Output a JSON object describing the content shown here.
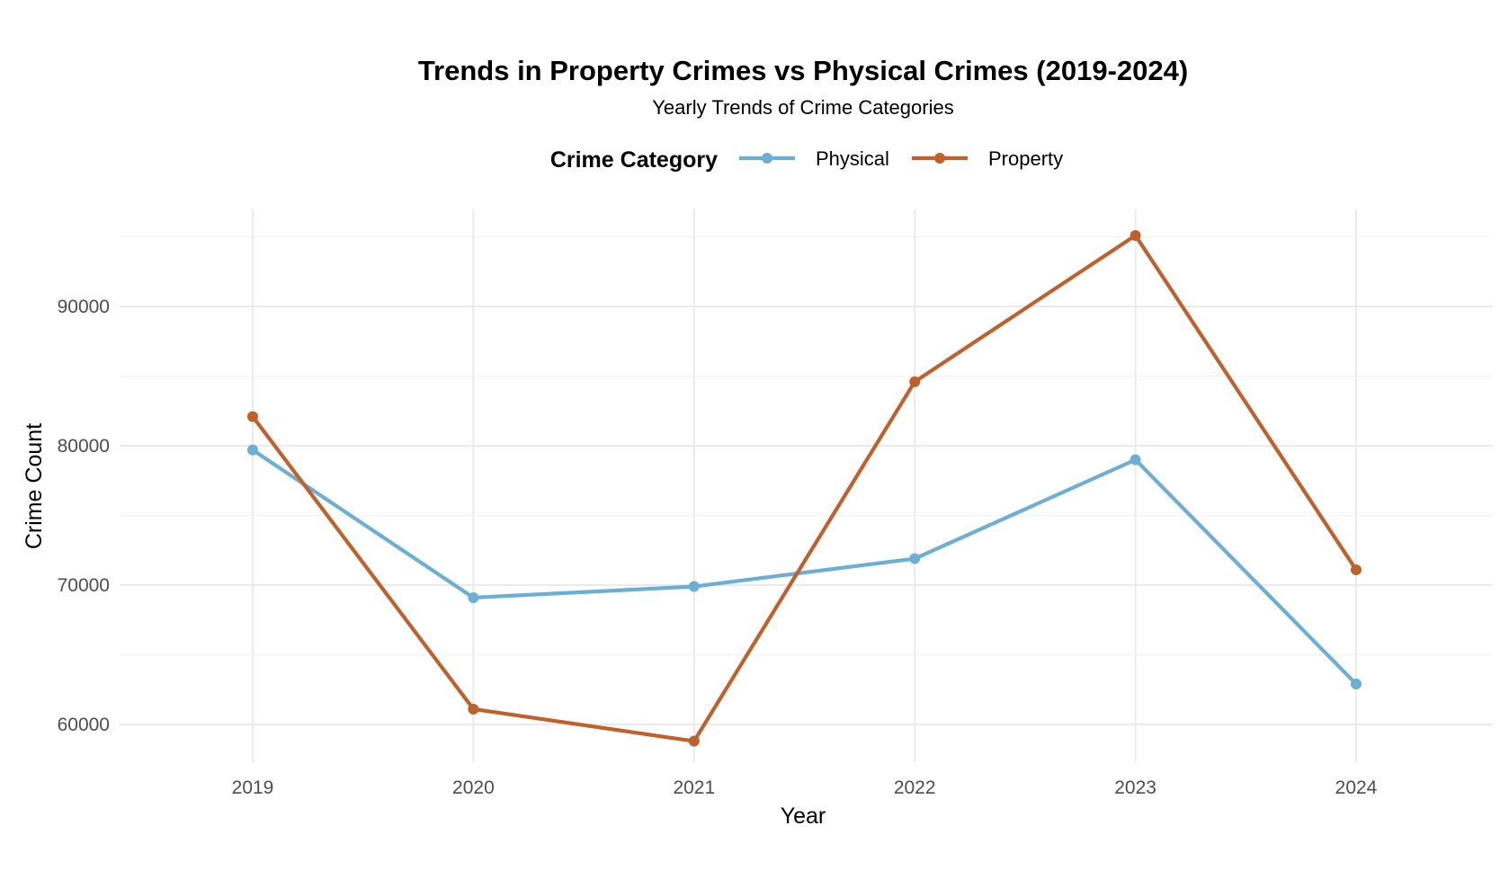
{
  "chart_data": {
    "type": "line",
    "title": "Trends in Property Crimes vs Physical Crimes (2019-2024)",
    "subtitle": "Yearly Trends of Crime Categories",
    "xlabel": "Year",
    "ylabel": "Crime Count",
    "legend_title": "Crime Category",
    "legend_position": "top",
    "grid": true,
    "x": [
      2019,
      2020,
      2021,
      2022,
      2023,
      2024
    ],
    "x_tick_labels": [
      "2019",
      "2020",
      "2021",
      "2022",
      "2023",
      "2024"
    ],
    "y_ticks": [
      60000,
      70000,
      80000,
      90000
    ],
    "y_tick_labels": [
      "60000",
      "70000",
      "80000",
      "90000"
    ],
    "ylim": [
      55000,
      97000
    ],
    "series": [
      {
        "name": "Physical",
        "color": "#6BAED6",
        "values": [
          79700,
          69100,
          69900,
          71900,
          79000,
          62900
        ]
      },
      {
        "name": "Property",
        "color": "#C0612B",
        "values": [
          82100,
          61100,
          58800,
          84600,
          95100,
          71100
        ]
      }
    ]
  }
}
